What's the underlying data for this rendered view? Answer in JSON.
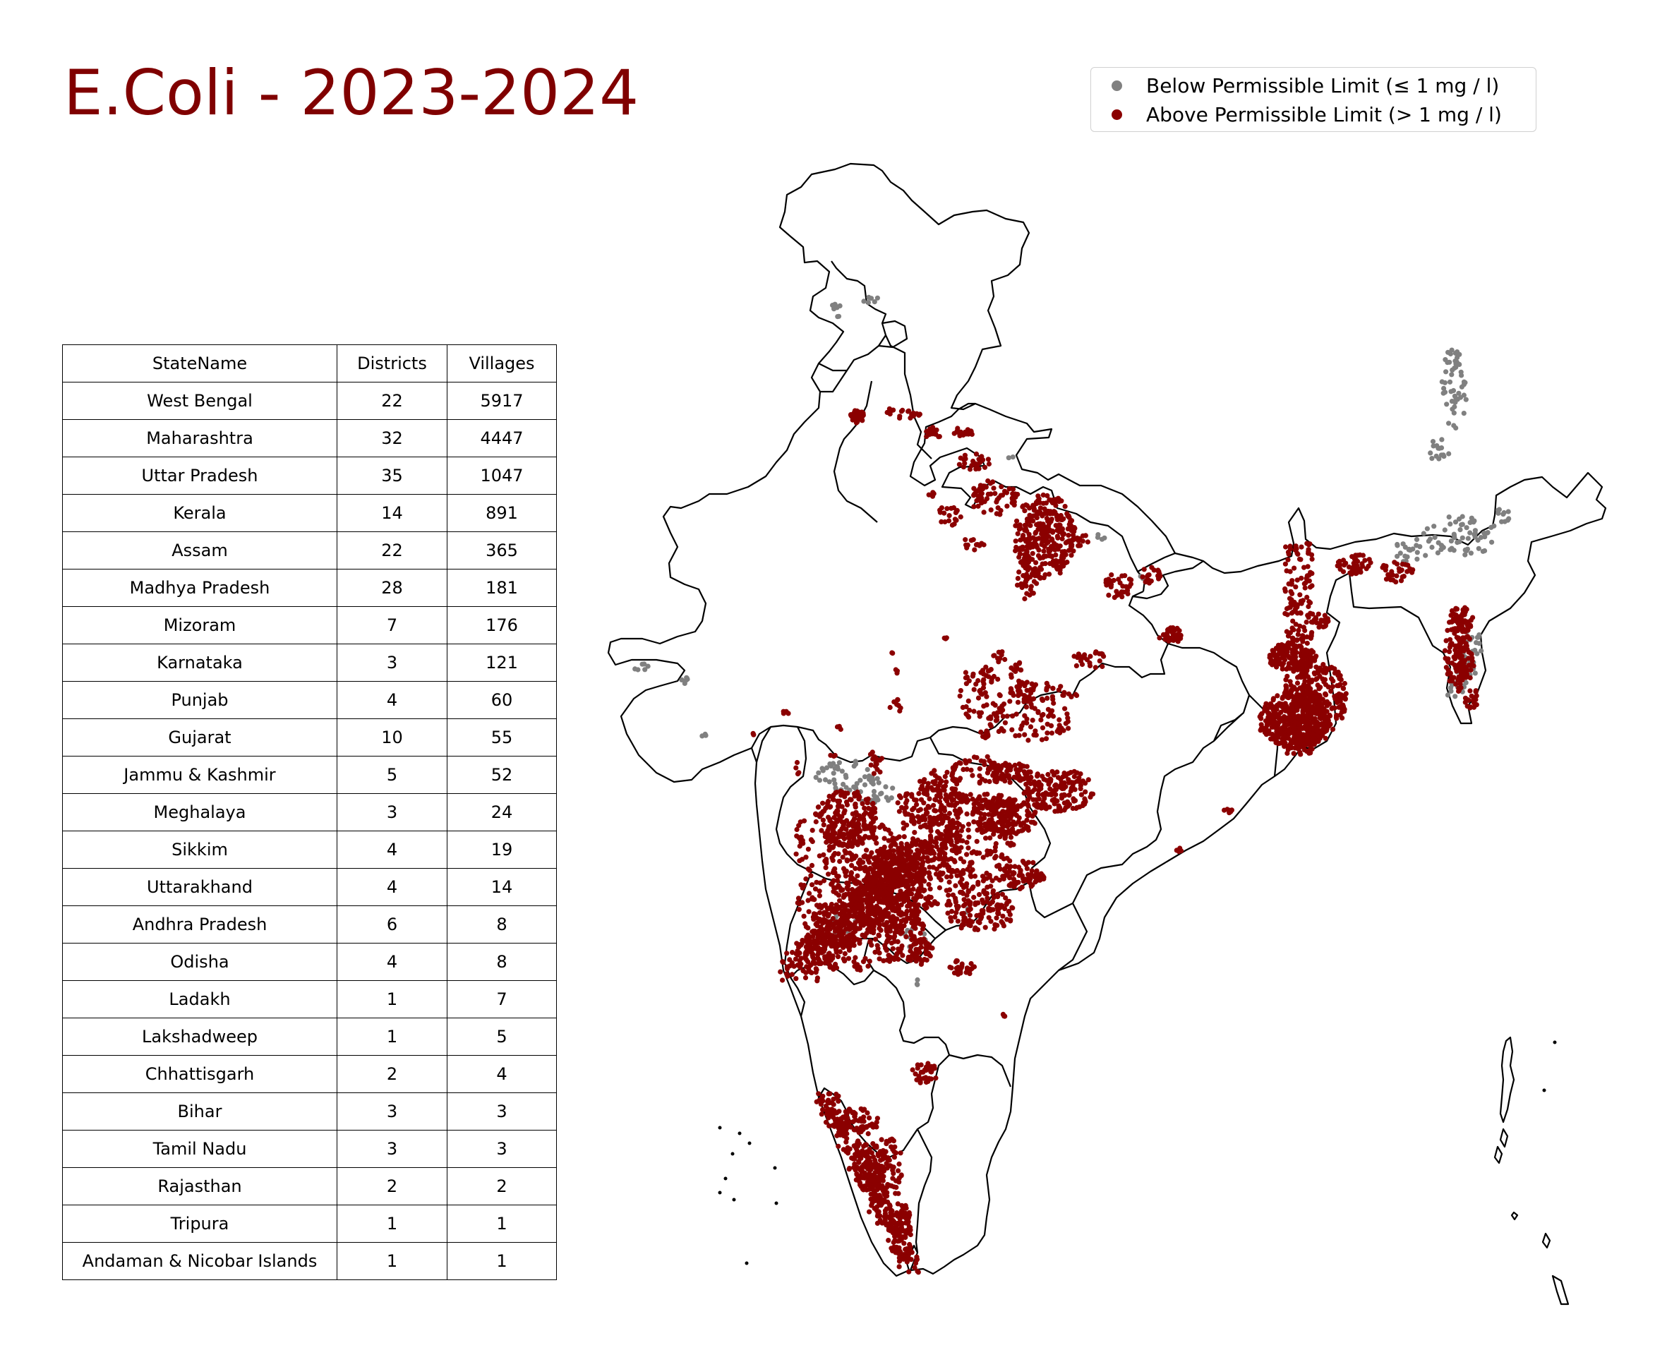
{
  "title": "E.Coli - 2023-2024",
  "legend": {
    "below": {
      "label": "Below Permissible Limit (≤ 1 mg / l)",
      "color": "#808080"
    },
    "above": {
      "label": "Above Permissible Limit (> 1 mg / l)",
      "color": "#8b0000"
    }
  },
  "table": {
    "headers": [
      "StateName",
      "Districts",
      "Villages"
    ],
    "rows": [
      [
        "West Bengal",
        "22",
        "5917"
      ],
      [
        "Maharashtra",
        "32",
        "4447"
      ],
      [
        "Uttar Pradesh",
        "35",
        "1047"
      ],
      [
        "Kerala",
        "14",
        "891"
      ],
      [
        "Assam",
        "22",
        "365"
      ],
      [
        "Madhya Pradesh",
        "28",
        "181"
      ],
      [
        "Mizoram",
        "7",
        "176"
      ],
      [
        "Karnataka",
        "3",
        "121"
      ],
      [
        "Punjab",
        "4",
        "60"
      ],
      [
        "Gujarat",
        "10",
        "55"
      ],
      [
        "Jammu & Kashmir",
        "5",
        "52"
      ],
      [
        "Meghalaya",
        "3",
        "24"
      ],
      [
        "Sikkim",
        "4",
        "19"
      ],
      [
        "Uttarakhand",
        "4",
        "14"
      ],
      [
        "Andhra Pradesh",
        "6",
        "8"
      ],
      [
        "Odisha",
        "4",
        "8"
      ],
      [
        "Ladakh",
        "1",
        "7"
      ],
      [
        "Lakshadweep",
        "1",
        "5"
      ],
      [
        "Chhattisgarh",
        "2",
        "4"
      ],
      [
        "Bihar",
        "3",
        "3"
      ],
      [
        "Tamil Nadu",
        "3",
        "3"
      ],
      [
        "Rajasthan",
        "2",
        "2"
      ],
      [
        "Tripura",
        "1",
        "1"
      ],
      [
        "Andaman & Nicobar Islands",
        "1",
        "1"
      ]
    ]
  }
}
